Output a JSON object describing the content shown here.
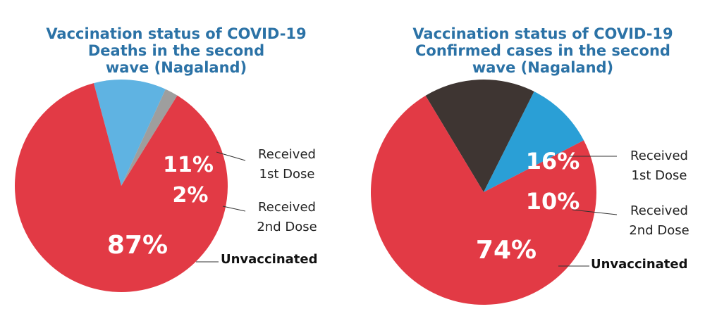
{
  "chart_data": [
    {
      "type": "pie",
      "title": "Vaccination status of COVID-19\nDeaths in the second\nwave (Nagaland)",
      "slices": [
        {
          "key": "unvaccinated",
          "label": "Unvaccinated",
          "value": 87,
          "display": "87%",
          "color": "#e23a45"
        },
        {
          "key": "first_dose",
          "label": "Received\n1st Dose",
          "value": 11,
          "display": "11%",
          "color": "#5fb3e2"
        },
        {
          "key": "second_dose",
          "label": "Received\n2nd Dose",
          "value": 2,
          "display": "2%",
          "color": "#9e9e9e"
        }
      ]
    },
    {
      "type": "pie",
      "title": "Vaccination status of COVID-19\nConfirmed cases in the second\nwave (Nagaland)",
      "slices": [
        {
          "key": "unvaccinated",
          "label": "Unvaccinated",
          "value": 74,
          "display": "74%",
          "color": "#e23a45"
        },
        {
          "key": "first_dose",
          "label": "Received\n1st Dose",
          "value": 16,
          "display": "16%",
          "color": "#3e3532"
        },
        {
          "key": "second_dose",
          "label": "Received\n2nd Dose",
          "value": 10,
          "display": "10%",
          "color": "#2a9fd6"
        }
      ]
    }
  ]
}
